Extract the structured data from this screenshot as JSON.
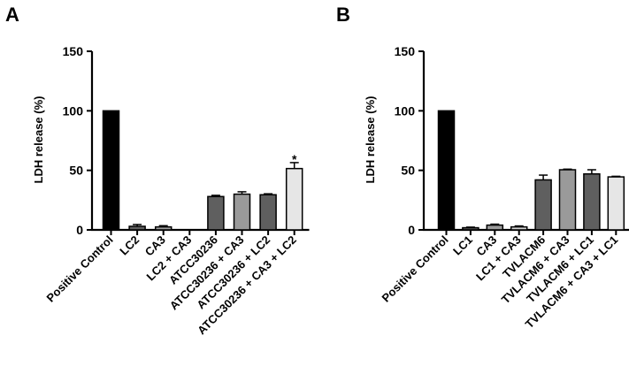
{
  "chart_data": [
    {
      "panel": "A",
      "type": "bar",
      "title": "",
      "ylabel": "LDH release (%)",
      "xlabel": "",
      "ylim": [
        0,
        150
      ],
      "yticks": [
        0,
        50,
        100,
        150
      ],
      "grid": false,
      "categories": [
        "Positive Control",
        "LC2",
        "CA3",
        "LC2 + CA3",
        "ATCC30236",
        "ATCC30236 + CA3",
        "ATCC30236 + LC2",
        "ATCC30236 + CA3 + LC2"
      ],
      "values": [
        100,
        3,
        2.5,
        0,
        28,
        30,
        29.5,
        51.5
      ],
      "errors": [
        0,
        1.5,
        1,
        0,
        1,
        2,
        0.8,
        5
      ],
      "colors": [
        "#000000",
        "#5f5f5f",
        "#9a9a9a",
        "#cfcfcf",
        "#5f5f5f",
        "#9a9a9a",
        "#5f5f5f",
        "#e6e6e6"
      ],
      "annotations": [
        {
          "category": "ATCC30236 + CA3 + LC2",
          "text": "*"
        }
      ]
    },
    {
      "panel": "B",
      "type": "bar",
      "title": "",
      "ylabel": "LDH release (%)",
      "xlabel": "",
      "ylim": [
        0,
        150
      ],
      "yticks": [
        0,
        50,
        100,
        150
      ],
      "grid": false,
      "categories": [
        "Positive Control",
        "LC1",
        "CA3",
        "LC1 + CA3",
        "TVLACM6",
        "TVLACM6 + CA3",
        "TVLACM6 + LC1",
        "TVLACM6 + CA3 + LC1"
      ],
      "values": [
        100,
        1.8,
        4,
        2.5,
        42,
        50.5,
        47,
        44.5
      ],
      "errors": [
        0,
        0.5,
        0.8,
        0.8,
        4,
        0.5,
        3.5,
        0.5
      ],
      "colors": [
        "#000000",
        "#5f5f5f",
        "#9a9a9a",
        "#cfcfcf",
        "#5f5f5f",
        "#9a9a9a",
        "#5f5f5f",
        "#e6e6e6"
      ],
      "annotations": []
    }
  ]
}
